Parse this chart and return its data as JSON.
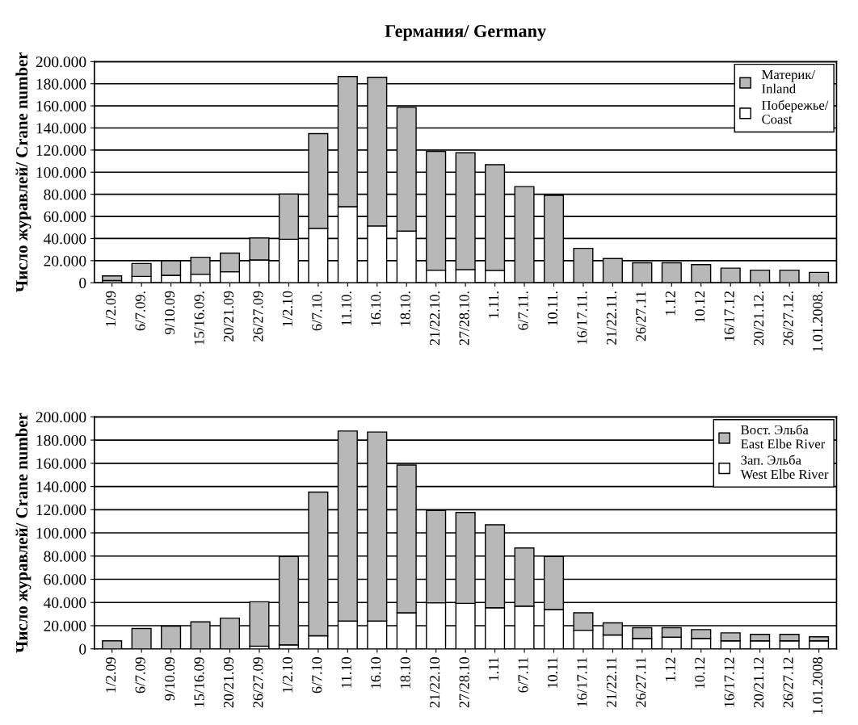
{
  "chart_data": [
    {
      "type": "bar",
      "stacked": true,
      "title": "Германия/ Germany",
      "ylabel": "Число журавлей/ Crane number",
      "legend": "top right",
      "grid": "y",
      "categories": [
        "1/2.09",
        "6/7.09.",
        "9/10.09",
        "15/16.09.",
        "20/21.09",
        "26/27.09",
        "1/2.10",
        "6/7.10.",
        "11.10.",
        "16.10.",
        "18.10.",
        "21/22.10.",
        "27/28.10.",
        "1.11.",
        "6/7.11.",
        "10.11.",
        "16/17.11.",
        "21/22.11.",
        "26/27.11",
        "1.12",
        "10.12",
        "16/17.12",
        "20/21.12.",
        "26/27.12.",
        "1.01.2008."
      ],
      "series": [
        {
          "name": "Побережье/\nCoast",
          "color": "#ffffff",
          "values": [
            2.0,
            5.7,
            6.7,
            7.7,
            9.9,
            20.6,
            39.3,
            49.2,
            68.8,
            51.4,
            46.7,
            11.4,
            11.9,
            11.2,
            null,
            null,
            null,
            null,
            null,
            null,
            null,
            null,
            null,
            null,
            null
          ]
        },
        {
          "name": "Материк/\nInland",
          "color": "#b8b8b8",
          "values": [
            4.2,
            11.7,
            13.2,
            15.4,
            16.9,
            19.9,
            40.9,
            85.7,
            117.8,
            134.4,
            111.8,
            107.4,
            105.6,
            95.6,
            87.0,
            79.0,
            31.1,
            21.9,
            18.1,
            18.1,
            16.4,
            13.2,
            11.4,
            11.4,
            9.4
          ]
        }
      ],
      "ylim": [
        0,
        200
      ],
      "yticks": [
        {
          "value": 0,
          "label": "0"
        },
        {
          "value": 20,
          "label": "20.000"
        },
        {
          "value": 40,
          "label": "40.000"
        },
        {
          "value": 60,
          "label": "60.000"
        },
        {
          "value": 80,
          "label": "80.000"
        },
        {
          "value": 100,
          "label": "100.000"
        },
        {
          "value": 120,
          "label": "120.000"
        },
        {
          "value": 140,
          "label": "140.000"
        },
        {
          "value": 160,
          "label": "160.000"
        },
        {
          "value": 180,
          "label": "180.000"
        },
        {
          "value": 200,
          "label": "200.000"
        }
      ]
    },
    {
      "type": "bar",
      "stacked": true,
      "ylabel": "Число журавлей/ Crane number",
      "legend": "top right",
      "grid": "y",
      "categories": [
        "1/2.09",
        "6/7.09",
        "9/10.09",
        "15/16.09",
        "20/21.09",
        "26/27.09",
        "1/2.10",
        "6/7.10",
        "11.10",
        "16.10",
        "18.10",
        "21/22.10",
        "27/28.10",
        "1.11",
        "6/7.11",
        "10.11",
        "16/17.11",
        "21/22.11",
        "26/27.11",
        "1.12",
        "10.12",
        "16/17.12",
        "20/21.12",
        "26/27.12",
        "1.01.2008"
      ],
      "series": [
        {
          "name": "Зап. Эльба\nWest Elbe River",
          "color": "#ffffff",
          "values": [
            null,
            null,
            null,
            null,
            null,
            2.3,
            3.5,
            11.3,
            24.0,
            24.0,
            31.1,
            39.7,
            39.2,
            35.5,
            36.9,
            33.9,
            16.1,
            12.0,
            9.0,
            10.1,
            9.0,
            6.9,
            6.9,
            6.9,
            6.9
          ]
        },
        {
          "name": "Вост. Эльба\nEast Elbe River",
          "color": "#b8b8b8",
          "values": [
            6.9,
            17.5,
            19.6,
            23.3,
            26.5,
            38.3,
            76.1,
            123.9,
            163.8,
            162.9,
            127.4,
            79.6,
            78.4,
            71.5,
            50.1,
            45.7,
            15.0,
            10.4,
            9.2,
            8.1,
            7.6,
            6.9,
            5.6,
            5.6,
            3.5
          ]
        }
      ],
      "ylim": [
        0,
        200
      ],
      "yticks": [
        {
          "value": 0,
          "label": "0"
        },
        {
          "value": 20,
          "label": "20.000"
        },
        {
          "value": 40,
          "label": "40.000"
        },
        {
          "value": 60,
          "label": "60.000"
        },
        {
          "value": 80,
          "label": "80.000"
        },
        {
          "value": 100,
          "label": "100.000"
        },
        {
          "value": 120,
          "label": "120.000"
        },
        {
          "value": 140,
          "label": "140.000"
        },
        {
          "value": 160,
          "label": "160.000"
        },
        {
          "value": 180,
          "label": "180.000"
        },
        {
          "value": 200,
          "label": "200.000"
        }
      ]
    }
  ]
}
